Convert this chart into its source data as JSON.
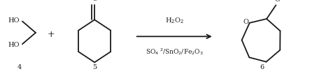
{
  "fig_width": 4.43,
  "fig_height": 1.09,
  "dpi": 100,
  "bg_color": "#ffffff",
  "lw": 1.3,
  "color": "#1a1a1a",
  "label4": "4",
  "label5": "5",
  "label6": "6",
  "plus_text": "+",
  "arrow_above": "H$_2$O$_2$",
  "arrow_below": "SO$_4$$^{\\,2}$/SnO$_2$/Fe$_2$O$_3$",
  "fs": 7.0
}
